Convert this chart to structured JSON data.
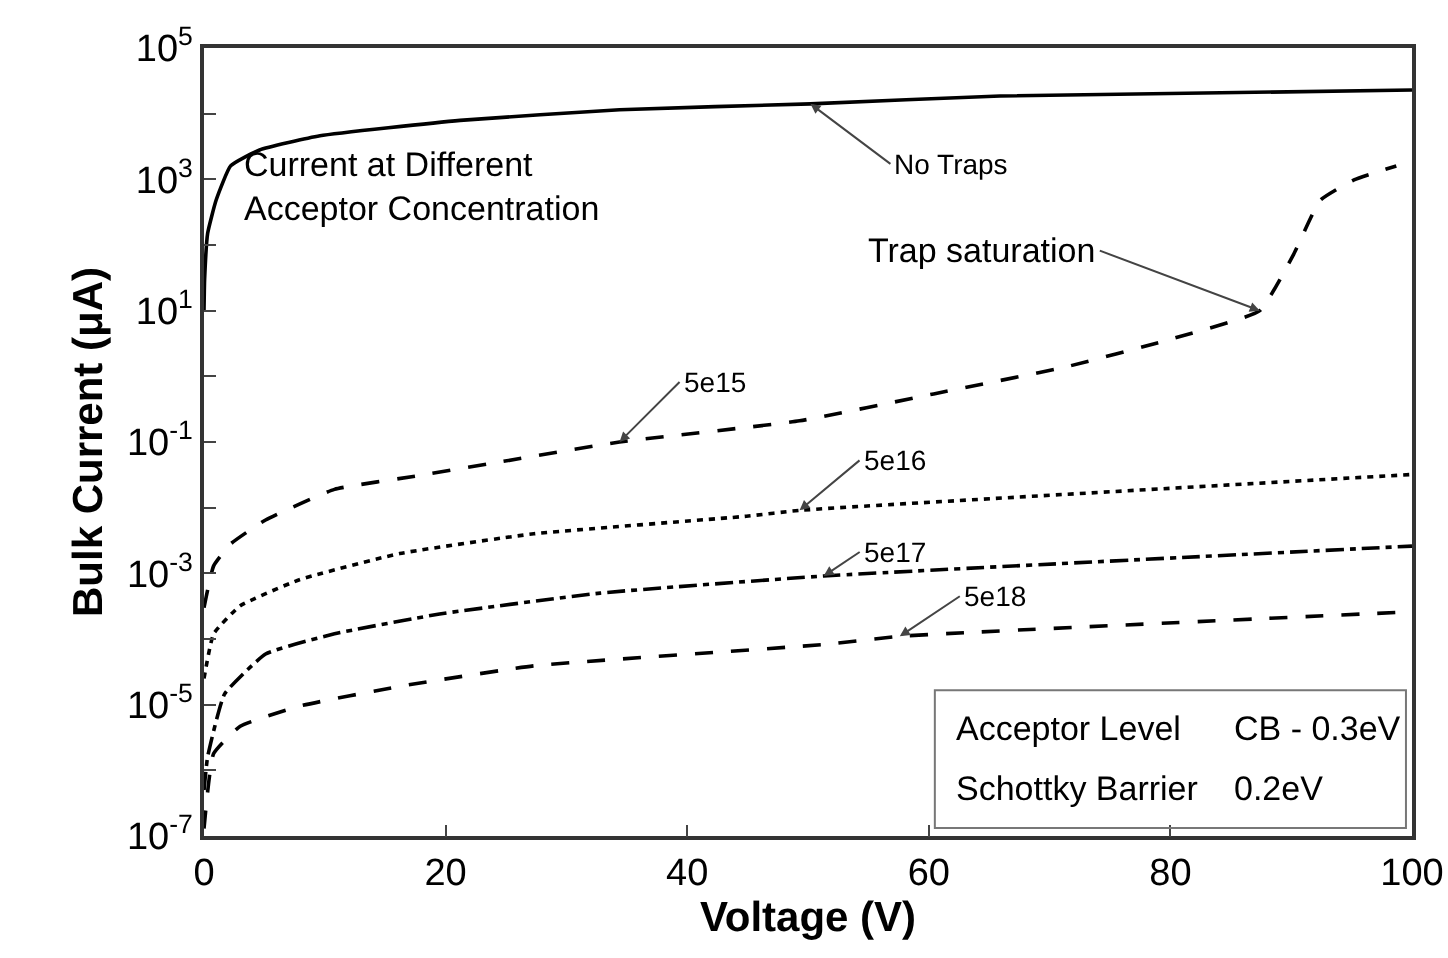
{
  "chart_data": {
    "type": "line",
    "xlabel": "Voltage (V)",
    "ylabel": "Bulk Current (μA)",
    "log": "y",
    "xlim": [
      0,
      100
    ],
    "xticks": [
      0,
      20,
      40,
      60,
      80,
      100
    ],
    "ylim": [
      1e-07,
      100000.0
    ],
    "yticks": [
      {
        "value": 1e-07,
        "label": "10$^{-7}$"
      },
      {
        "value": 1e-06,
        "label": null
      },
      {
        "value": 1e-05,
        "label": "10$^{-5}$"
      },
      {
        "value": 0.0001,
        "label": null
      },
      {
        "value": 0.001,
        "label": "10$^{-3}$"
      },
      {
        "value": 0.01,
        "label": null
      },
      {
        "value": 0.1,
        "label": "10$^{-1}$"
      },
      {
        "value": 1,
        "label": null
      },
      {
        "value": 10,
        "label": "10$^{1}$"
      },
      {
        "value": 100,
        "label": null
      },
      {
        "value": 1000,
        "label": "10$^{3}$"
      },
      {
        "value": 10000,
        "label": null
      },
      {
        "value": 100000,
        "label": "10$^{5}$"
      }
    ],
    "grid": false,
    "legend": false,
    "marker": "none",
    "series": [
      {
        "name": "No Traps",
        "color": "#000000",
        "line_style": "solid",
        "x": [
          0,
          0.05,
          0.3,
          1,
          2.2,
          4.6,
          9.6,
          21.2,
          34.4,
          50.2,
          65.9,
          100
        ],
        "values": [
          10,
          30,
          150,
          480,
          1600,
          2800,
          4600,
          7900,
          11500,
          14100,
          18600,
          22900
        ]
      },
      {
        "name": "5e15",
        "color": "#000000",
        "line_style": "dashed",
        "x": [
          0,
          0.8,
          2.2,
          5.1,
          10.8,
          17.9,
          24,
          34.4,
          49.3,
          60.4,
          71.4,
          79.6,
          87.4,
          90.2,
          92.4,
          95.2,
          98.7
        ],
        "values": [
          0.0003,
          0.0013,
          0.0028,
          0.0065,
          0.019,
          0.031,
          0.048,
          0.1,
          0.21,
          0.54,
          1.4,
          3.5,
          10,
          72,
          480,
          980,
          1600
        ]
      },
      {
        "name": "5e16",
        "color": "#000000",
        "line_style": "dotted",
        "x": [
          0,
          0.8,
          3,
          7.9,
          16.2,
          27.3,
          44.9,
          49.3,
          100
        ],
        "values": [
          2.5e-05,
          0.00012,
          0.00032,
          0.0008,
          0.002,
          0.004,
          0.0074,
          0.0091,
          0.032
        ]
      },
      {
        "name": "5e17",
        "color": "#000000",
        "line_style": "dashdot",
        "x": [
          0,
          0.3,
          1.7,
          5.1,
          10.8,
          19.5,
          32.8,
          51.3,
          100
        ],
        "values": [
          5e-07,
          1.6e-06,
          1.45e-05,
          5.9e-05,
          0.00012,
          0.00024,
          0.0005,
          0.00091,
          0.0026
        ]
      },
      {
        "name": "5e18",
        "color": "#000000",
        "line_style": "dashed",
        "x": [
          0,
          0.8,
          3,
          7.9,
          16.2,
          27.3,
          51.5,
          57.6,
          100
        ],
        "values": [
          1.3e-07,
          1.8e-06,
          4.7e-06,
          9.5e-06,
          1.9e-05,
          3.9e-05,
          8.3e-05,
          0.00011,
          0.00026
        ]
      }
    ],
    "annotations": [
      {
        "text": "Trap saturation",
        "x": 87.4,
        "y": 10
      },
      "Current at Different Acceptor Concentration",
      "Acceptor Level",
      "CB - 0.3eV",
      "Schottky Barrier",
      "0.2eV"
    ]
  }
}
